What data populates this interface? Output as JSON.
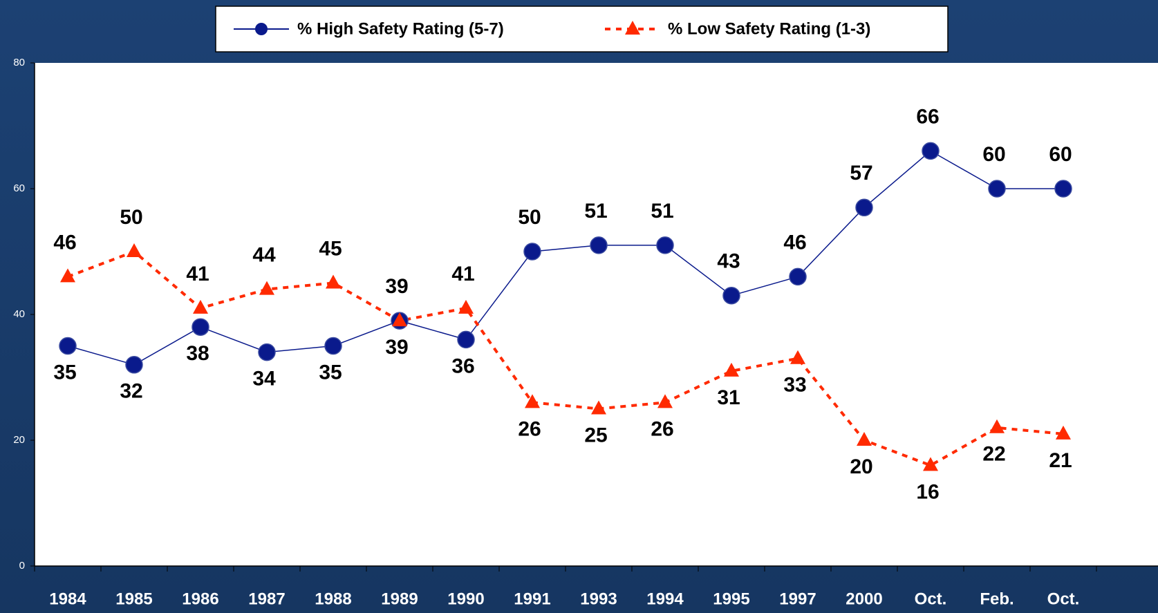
{
  "chart_data": {
    "type": "line",
    "categories": [
      "1984",
      "1985",
      "1986",
      "1987",
      "1988",
      "1989",
      "1990",
      "1991",
      "1993",
      "1994",
      "1995",
      "1997",
      "2000",
      "Oct.",
      "Feb.",
      "Oct."
    ],
    "series": [
      {
        "name": "% High Safety Rating (5-7)",
        "color": "#0a1a8c",
        "values": [
          35,
          32,
          38,
          34,
          35,
          39,
          36,
          50,
          51,
          51,
          43,
          46,
          57,
          66,
          60,
          60
        ]
      },
      {
        "name": "% Low Safety Rating (1-3)",
        "color": "#ff2a00",
        "values": [
          46,
          50,
          41,
          44,
          45,
          39,
          41,
          26,
          25,
          26,
          31,
          33,
          20,
          16,
          22,
          21
        ]
      }
    ],
    "ylim": [
      0,
      80
    ],
    "yticks": [
      0,
      20,
      40,
      60,
      80
    ],
    "grid": false
  }
}
